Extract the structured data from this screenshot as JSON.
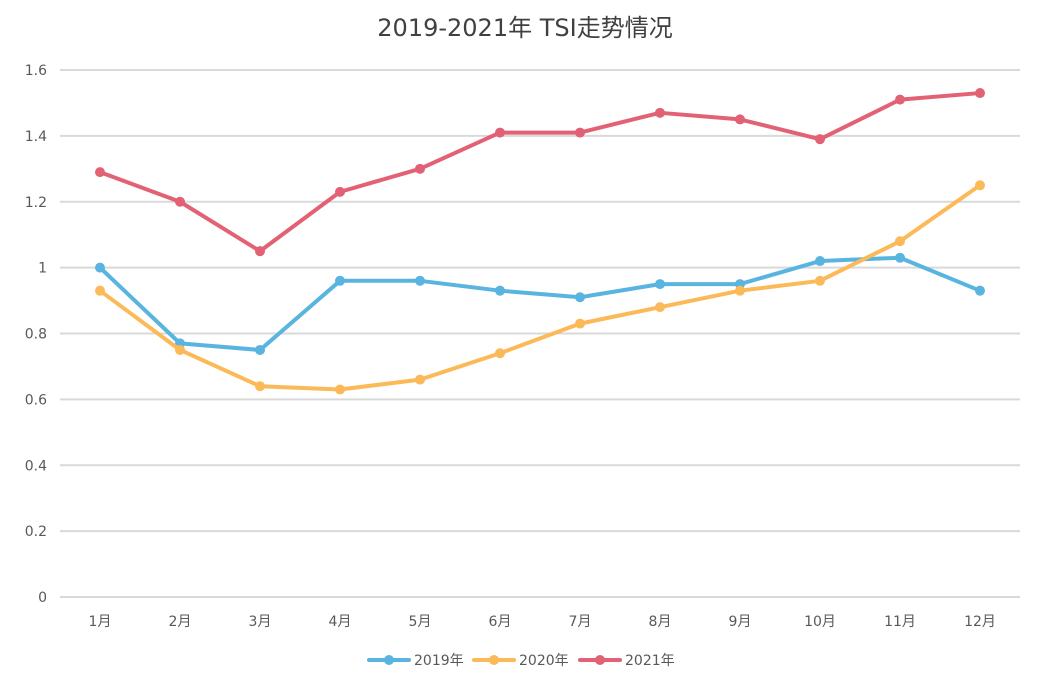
{
  "chart_data": {
    "type": "line",
    "title": "2019-2021年 TSI走势情况",
    "xlabel": "",
    "ylabel": "",
    "categories": [
      "1月",
      "2月",
      "3月",
      "4月",
      "5月",
      "6月",
      "7月",
      "8月",
      "9月",
      "10月",
      "11月",
      "12月"
    ],
    "ylim": [
      0,
      1.6
    ],
    "yticks": [
      "0",
      "0.2",
      "0.4",
      "0.6",
      "0.8",
      "1",
      "1.2",
      "1.4",
      "1.6"
    ],
    "grid": true,
    "legend_position": "bottom",
    "series": [
      {
        "name": "2019年",
        "color": "#5ab4e0",
        "values": [
          1.0,
          0.77,
          0.75,
          0.96,
          0.96,
          0.93,
          0.91,
          0.95,
          0.95,
          1.02,
          1.03,
          0.93
        ]
      },
      {
        "name": "2020年",
        "color": "#fbb958",
        "values": [
          0.93,
          0.75,
          0.64,
          0.63,
          0.66,
          0.74,
          0.83,
          0.88,
          0.93,
          0.96,
          1.08,
          1.25
        ]
      },
      {
        "name": "2021年",
        "color": "#e36174",
        "values": [
          1.29,
          1.2,
          1.05,
          1.23,
          1.3,
          1.41,
          1.41,
          1.47,
          1.45,
          1.39,
          1.51,
          1.53
        ]
      }
    ]
  }
}
